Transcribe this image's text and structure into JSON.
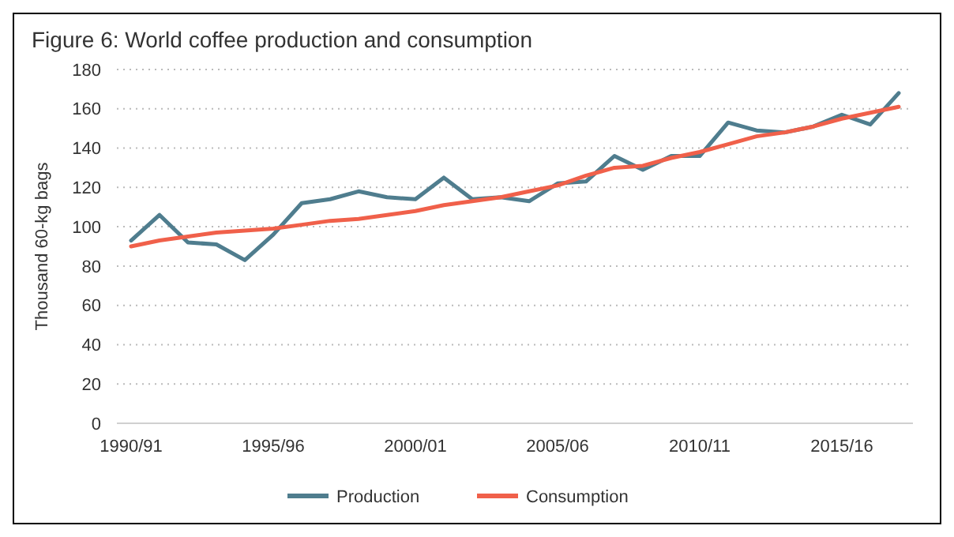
{
  "chart_data": {
    "type": "line",
    "title": "Figure 6: World coffee production  and consumption",
    "ylabel": "Thousand 60-kg bags",
    "categories": [
      "1990/91",
      null,
      null,
      null,
      null,
      "1995/96",
      null,
      null,
      null,
      null,
      "2000/01",
      null,
      null,
      null,
      null,
      "2005/06",
      null,
      null,
      null,
      null,
      "2010/11",
      null,
      null,
      null,
      null,
      "2015/16",
      null,
      null
    ],
    "series": [
      {
        "name": "Production",
        "color": "#4f7d8e",
        "values": [
          93,
          106,
          92,
          91,
          83,
          96,
          112,
          114,
          118,
          115,
          114,
          125,
          114,
          115,
          113,
          122,
          123,
          136,
          129,
          136,
          136,
          153,
          149,
          148,
          151,
          157,
          152,
          168
        ]
      },
      {
        "name": "Consumption",
        "color": "#f0604a",
        "values": [
          90,
          93,
          95,
          97,
          98,
          99,
          101,
          103,
          104,
          106,
          108,
          111,
          113,
          115,
          118,
          121,
          126,
          130,
          131,
          135,
          138,
          142,
          146,
          148,
          151,
          155,
          158,
          161
        ]
      }
    ],
    "ylim": [
      0,
      180
    ],
    "yticks": [
      0,
      20,
      40,
      60,
      80,
      100,
      120,
      140,
      160,
      180
    ],
    "grid": "y",
    "legend": "bottom",
    "line_style": "solid",
    "marker": "none"
  }
}
